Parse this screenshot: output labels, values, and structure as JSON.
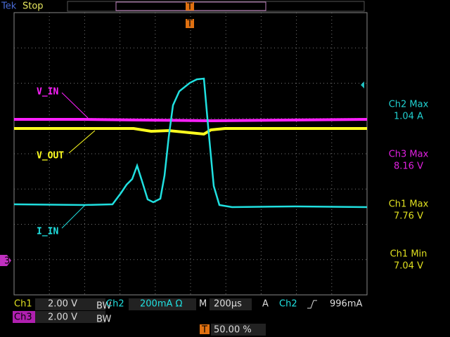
{
  "header": {
    "brand": "Tek",
    "state": "Stop",
    "trigger_marker": "T"
  },
  "trace_labels": {
    "v_in": "V_IN",
    "v_out": "V_OUT",
    "i_in": "I_IN"
  },
  "ref_marker": "3",
  "measurements": [
    {
      "label": "Ch2 Max",
      "value": "1.04 A"
    },
    {
      "label": "Ch3 Max",
      "value": "8.16 V"
    },
    {
      "label": "Ch1 Max",
      "value": "7.76 V"
    },
    {
      "label": "Ch1 Min",
      "value": "7.04 V"
    }
  ],
  "status": {
    "ch1": {
      "name": "Ch1",
      "scale": "2.00 V",
      "bw": "BW"
    },
    "ch2": {
      "name": "Ch2",
      "scale": "200mA Ω"
    },
    "timebase": {
      "name": "M",
      "scale": "200µs"
    },
    "trigger": {
      "mode": "A",
      "source": "Ch2",
      "level": "996mA"
    },
    "ch3": {
      "name": "Ch3",
      "scale": "2.00 V",
      "bw": "BW"
    },
    "trigger_position": {
      "icon": "T",
      "value": "50.00 %"
    }
  }
}
